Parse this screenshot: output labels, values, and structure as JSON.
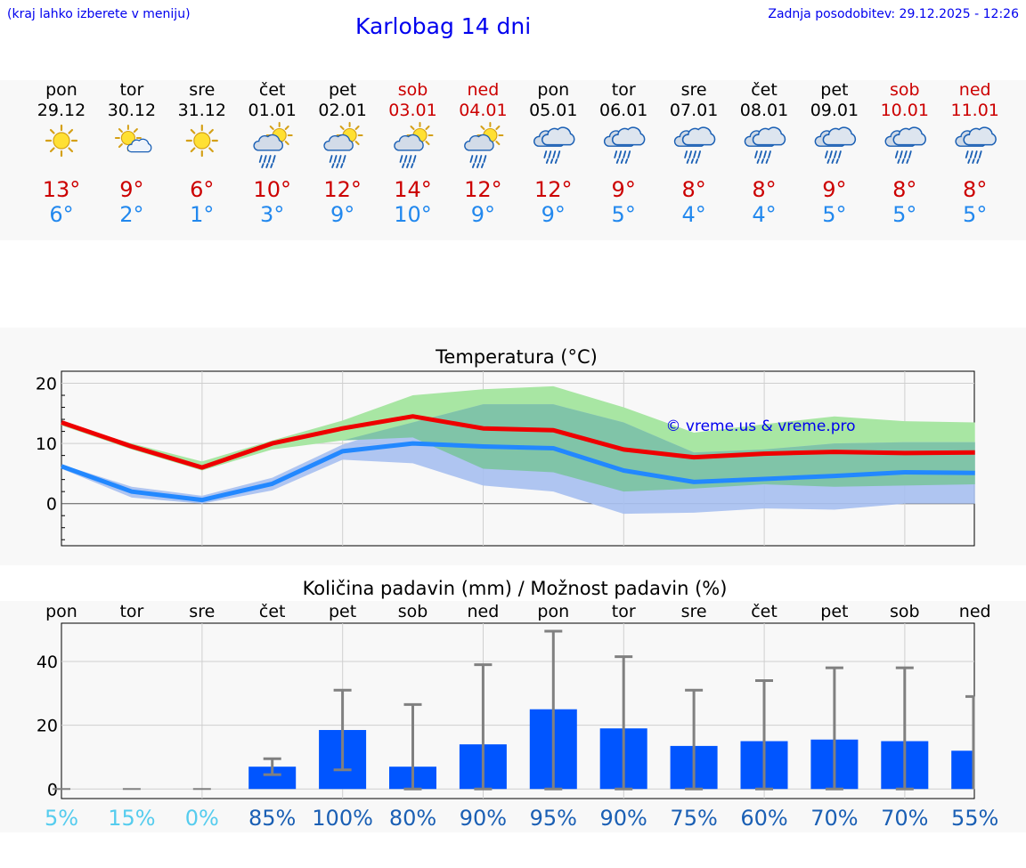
{
  "header": {
    "hint": "(kraj lahko izberete v meniju)",
    "title": "Karlobag 14 dni",
    "updated": "Zadnja posodobitev: 29.12.2025 - 12:26"
  },
  "days": [
    {
      "name": "pon",
      "date": "29.12",
      "weekend": false,
      "icon": "sun-icon",
      "max": "13°",
      "min": "6°",
      "pct": "5%"
    },
    {
      "name": "tor",
      "date": "30.12",
      "weekend": false,
      "icon": "sun-cloud-icon",
      "max": "9°",
      "min": "2°",
      "pct": "15%"
    },
    {
      "name": "sre",
      "date": "31.12",
      "weekend": false,
      "icon": "sun-icon",
      "max": "6°",
      "min": "1°",
      "pct": "0%"
    },
    {
      "name": "čet",
      "date": "01.01",
      "weekend": false,
      "icon": "sun-rain-icon",
      "max": "10°",
      "min": "3°",
      "pct": "85%"
    },
    {
      "name": "pet",
      "date": "02.01",
      "weekend": false,
      "icon": "sun-rain-icon",
      "max": "12°",
      "min": "9°",
      "pct": "100%"
    },
    {
      "name": "sob",
      "date": "03.01",
      "weekend": true,
      "icon": "sun-rain-icon",
      "max": "14°",
      "min": "10°",
      "pct": "80%"
    },
    {
      "name": "ned",
      "date": "04.01",
      "weekend": true,
      "icon": "sun-rain-icon",
      "max": "12°",
      "min": "9°",
      "pct": "90%"
    },
    {
      "name": "pon",
      "date": "05.01",
      "weekend": false,
      "icon": "rain-cloud-icon",
      "max": "12°",
      "min": "9°",
      "pct": "95%"
    },
    {
      "name": "tor",
      "date": "06.01",
      "weekend": false,
      "icon": "rain-cloud-icon",
      "max": "9°",
      "min": "5°",
      "pct": "90%"
    },
    {
      "name": "sre",
      "date": "07.01",
      "weekend": false,
      "icon": "rain-cloud-icon",
      "max": "8°",
      "min": "4°",
      "pct": "75%"
    },
    {
      "name": "čet",
      "date": "08.01",
      "weekend": false,
      "icon": "rain-cloud-icon",
      "max": "8°",
      "min": "4°",
      "pct": "60%"
    },
    {
      "name": "pet",
      "date": "09.01",
      "weekend": false,
      "icon": "rain-cloud-icon",
      "max": "9°",
      "min": "5°",
      "pct": "70%"
    },
    {
      "name": "sob",
      "date": "10.01",
      "weekend": true,
      "icon": "rain-cloud-icon",
      "max": "8°",
      "min": "5°",
      "pct": "70%"
    },
    {
      "name": "ned",
      "date": "11.01",
      "weekend": true,
      "icon": "rain-cloud-icon",
      "max": "8°",
      "min": "5°",
      "pct": "55%"
    }
  ],
  "colors": {
    "max_temp": "#cc0000",
    "min_temp": "#2288ee",
    "weekend": "#cc0000",
    "max_line": "#ee0000",
    "min_line": "#2288ff",
    "max_band": "#a8e6a3",
    "min_band": "#a8c0f0",
    "overlap_band": "#80c4a8",
    "bar": "#0055ff",
    "error_bar": "#808080",
    "pct_low": "#55ccee",
    "pct_high": "#1a5fb4",
    "link": "#0000ee"
  },
  "chart_data": [
    {
      "type": "line",
      "title": "Temperatura (°C)",
      "watermark": "© vreme.us & vreme.pro",
      "ylim": [
        -7,
        22
      ],
      "yticks": [
        0,
        10,
        20
      ],
      "x_days": 14,
      "series": [
        {
          "name": "max",
          "values": [
            13.5,
            9.5,
            6.0,
            10.0,
            12.5,
            14.5,
            12.5,
            12.2,
            9.0,
            7.7,
            8.3,
            8.6,
            8.4,
            8.5
          ]
        },
        {
          "name": "min",
          "values": [
            6.2,
            2.0,
            0.6,
            3.3,
            8.7,
            10.0,
            9.5,
            9.2,
            5.5,
            3.6,
            4.1,
            4.6,
            5.2,
            5.1
          ]
        }
      ],
      "bands": [
        {
          "name": "max_range",
          "upper": [
            13.5,
            10.0,
            7.0,
            10.5,
            13.8,
            18.0,
            19.0,
            19.5,
            16.0,
            11.8,
            13.2,
            14.5,
            13.7,
            13.5
          ],
          "lower": [
            13.0,
            9.0,
            5.5,
            9.0,
            10.5,
            11.0,
            5.8,
            5.2,
            2.0,
            2.5,
            3.2,
            2.8,
            3.0,
            3.2
          ]
        },
        {
          "name": "min_range",
          "upper": [
            6.5,
            2.8,
            1.3,
            4.3,
            9.8,
            13.5,
            16.5,
            16.5,
            13.5,
            8.5,
            9.0,
            10.0,
            10.2,
            10.2
          ],
          "lower": [
            5.8,
            1.0,
            0.0,
            2.2,
            7.3,
            6.7,
            3.0,
            2.0,
            -1.7,
            -1.5,
            -0.8,
            -1.0,
            0.0,
            0.0
          ]
        }
      ]
    },
    {
      "type": "bar",
      "title": "Količina padavin (mm) / Možnost padavin (%)",
      "ylim": [
        -3,
        52
      ],
      "yticks": [
        0,
        20,
        40
      ],
      "categories": [
        "pon",
        "tor",
        "sre",
        "čet",
        "pet",
        "sob",
        "ned",
        "pon",
        "tor",
        "sre",
        "čet",
        "pet",
        "sob",
        "ned"
      ],
      "values": [
        0,
        0,
        0,
        7,
        18.5,
        7,
        14,
        25,
        19,
        13.5,
        15,
        15.5,
        15,
        12
      ],
      "err_low": [
        0,
        0,
        0,
        4.5,
        6,
        0,
        0,
        0,
        0,
        0,
        0,
        0,
        0,
        0
      ],
      "err_high": [
        0,
        0,
        0,
        9.5,
        31,
        26.5,
        39,
        49.5,
        41.5,
        31,
        34,
        38,
        38,
        29
      ],
      "pct": [
        "5%",
        "15%",
        "0%",
        "85%",
        "100%",
        "80%",
        "90%",
        "95%",
        "90%",
        "75%",
        "60%",
        "70%",
        "70%",
        "55%"
      ]
    }
  ]
}
